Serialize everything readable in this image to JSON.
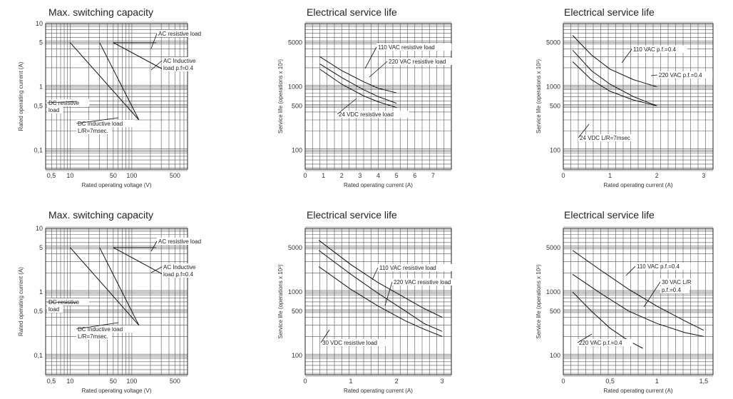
{
  "chart_data": [
    {
      "type": "line",
      "title": "Max. switching capacity",
      "xlabel": "Rated operating voltage (V)",
      "ylabel": "Rated operating current (A)",
      "xscale": "log",
      "yscale": "log",
      "xlim": [
        4,
        800
      ],
      "ylim": [
        0.05,
        10
      ],
      "xticks": [
        0.5,
        10,
        50,
        100,
        500
      ],
      "xtick_labels": [
        "0,5",
        "10",
        "50",
        "100",
        "500"
      ],
      "yticks": [
        0.1,
        0.5,
        1,
        5,
        10
      ],
      "ytick_labels": [
        "0,1",
        "0,5",
        "1",
        "5",
        "10"
      ],
      "grid": true,
      "series": [
        {
          "name": "AC resistive load",
          "x": [
            50,
            250
          ],
          "y": [
            5,
            5
          ]
        },
        {
          "name": "AC Inductive load p.f=0.4",
          "x": [
            50,
            350
          ],
          "y": [
            5,
            1.8
          ]
        },
        {
          "name": "DC resistive load",
          "x": [
            10,
            130
          ],
          "y": [
            5,
            0.3
          ]
        },
        {
          "name": "DC Inductive load L/R=7msec.",
          "x": [
            30,
            130
          ],
          "y": [
            5,
            0.3
          ]
        }
      ],
      "annotations": [
        {
          "text": "AC resistive load",
          "series": 0
        },
        {
          "text": "AC Inductive",
          "series": 1
        },
        {
          "text": "load p.f=0.4",
          "series": 1
        },
        {
          "text": "DC resistive",
          "series": 2
        },
        {
          "text": "load",
          "series": 2
        },
        {
          "text": "DC Inductive load",
          "series": 3
        },
        {
          "text": "L/R=7msec.",
          "series": 3
        }
      ]
    },
    {
      "type": "line",
      "title": "Electrical service life",
      "xlabel": "Rated operating current (A)",
      "ylabel": "Service life (operations x 10³)",
      "xscale": "linear",
      "yscale": "log",
      "xlim": [
        0,
        8
      ],
      "ylim": [
        50,
        10000
      ],
      "xticks": [
        0,
        1,
        2,
        3,
        4,
        5,
        6,
        7
      ],
      "xtick_labels": [
        "0",
        "1",
        "2",
        "3",
        "4",
        "5",
        "6",
        "7"
      ],
      "yticks": [
        100,
        500,
        1000,
        5000
      ],
      "ytick_labels": [
        "100",
        "500",
        "1000",
        "5000"
      ],
      "grid": true,
      "series": [
        {
          "name": "110 VAC resistive load",
          "x": [
            0.8,
            2.0,
            3.2,
            4.0,
            5.0
          ],
          "y": [
            3000,
            1800,
            1200,
            950,
            800
          ]
        },
        {
          "name": "220 VAC resistive load",
          "x": [
            0.8,
            2.0,
            3.2,
            4.0,
            5.0
          ],
          "y": [
            2300,
            1400,
            900,
            700,
            550
          ]
        },
        {
          "name": "24 VDC resistive load",
          "x": [
            0.8,
            2.0,
            3.2,
            4.0,
            5.0
          ],
          "y": [
            1900,
            1100,
            720,
            580,
            470
          ]
        }
      ],
      "annotations": [
        {
          "text": "110 VAC resistive load",
          "series": 0
        },
        {
          "text": "220 VAC resistive load",
          "series": 1
        },
        {
          "text": "24 VDC resistive load",
          "series": 2
        }
      ]
    },
    {
      "type": "line",
      "title": "Electrical service life",
      "xlabel": "Rated operating current (A)",
      "ylabel": "Service life (operations x 10³)",
      "xscale": "linear",
      "yscale": "log",
      "xlim": [
        0,
        3.2
      ],
      "ylim": [
        50,
        10000
      ],
      "xticks": [
        0,
        1,
        2,
        3
      ],
      "xtick_labels": [
        "0",
        "1",
        "2",
        "3"
      ],
      "yticks": [
        100,
        500,
        1000,
        5000
      ],
      "ytick_labels": [
        "100",
        "500",
        "1000",
        "5000"
      ],
      "grid": true,
      "series": [
        {
          "name": "110 VAC p.f.=0.4",
          "x": [
            0.2,
            0.6,
            1.0,
            1.5,
            2.0
          ],
          "y": [
            6500,
            3200,
            1900,
            1300,
            1000
          ]
        },
        {
          "name": "220 VAC p.f.=0.4",
          "x": [
            0.2,
            0.6,
            1.0,
            1.5,
            2.0
          ],
          "y": [
            3800,
            1800,
            1100,
            700,
            500
          ]
        },
        {
          "name": "24 VDC L/R=7msec",
          "x": [
            0.2,
            0.6,
            1.0,
            1.5,
            2.0
          ],
          "y": [
            2500,
            1300,
            850,
            620,
            500
          ]
        }
      ],
      "annotations": [
        {
          "text": "110 VAC p.f.=0.4",
          "series": 0
        },
        {
          "text": "220 VAC p.f.=0.4",
          "series": 1
        },
        {
          "text": "24 VDC L/R=7msec",
          "series": 2
        }
      ]
    },
    {
      "type": "line",
      "title": "Max. switching capacity",
      "xlabel": "Rated operating voltage (V)",
      "ylabel": "Rated operating current (A)",
      "xscale": "log",
      "yscale": "log",
      "xlim": [
        4,
        800
      ],
      "ylim": [
        0.05,
        10
      ],
      "xticks": [
        0.5,
        10,
        50,
        100,
        500
      ],
      "xtick_labels": [
        "0,5",
        "10",
        "50",
        "100",
        "500"
      ],
      "yticks": [
        0.1,
        0.5,
        1,
        5,
        10
      ],
      "ytick_labels": [
        "0,1",
        "0,5",
        "1",
        "5",
        "10"
      ],
      "grid": true,
      "series": [
        {
          "name": "AC resistive load",
          "x": [
            50,
            250
          ],
          "y": [
            5,
            5
          ]
        },
        {
          "name": "AC Inductive load p.f=0.4",
          "x": [
            50,
            350
          ],
          "y": [
            5,
            1.8
          ]
        },
        {
          "name": "DC resistive load",
          "x": [
            10,
            130
          ],
          "y": [
            5,
            0.3
          ]
        },
        {
          "name": "DC Inductive load L/R=7msec.",
          "x": [
            30,
            130
          ],
          "y": [
            5,
            0.3
          ]
        }
      ],
      "annotations": [
        {
          "text": "AC resistive load",
          "series": 0
        },
        {
          "text": "AC Inductive",
          "series": 1
        },
        {
          "text": "load p.f=0.4",
          "series": 1
        },
        {
          "text": "DC resistive",
          "series": 2
        },
        {
          "text": "load",
          "series": 2
        },
        {
          "text": "DC Inductive load",
          "series": 3
        },
        {
          "text": "L/R=7msec.",
          "series": 3
        }
      ]
    },
    {
      "type": "line",
      "title": "Electrical service life",
      "xlabel": "Rated operating current (A)",
      "ylabel": "Service life (operations x 10³)",
      "xscale": "linear",
      "yscale": "log",
      "xlim": [
        0,
        3.2
      ],
      "ylim": [
        50,
        10000
      ],
      "xticks": [
        0,
        1,
        2,
        3
      ],
      "xtick_labels": [
        "0",
        "1",
        "2",
        "3"
      ],
      "yticks": [
        100,
        500,
        1000,
        5000
      ],
      "ytick_labels": [
        "100",
        "500",
        "1000",
        "5000"
      ],
      "grid": true,
      "series": [
        {
          "name": "110 VAC resistive load",
          "x": [
            0.3,
            1.0,
            1.6,
            2.2,
            2.6,
            3.0
          ],
          "y": [
            6500,
            2700,
            1400,
            800,
            550,
            400
          ]
        },
        {
          "name": "220 VAC resistive load",
          "x": [
            0.3,
            1.0,
            1.6,
            2.2,
            2.6,
            3.0
          ],
          "y": [
            4500,
            1900,
            950,
            500,
            320,
            240
          ]
        },
        {
          "name": "30 VDC resistive load",
          "x": [
            0.3,
            1.0,
            1.6,
            2.2,
            2.6,
            3.0
          ],
          "y": [
            2500,
            1100,
            600,
            350,
            260,
            200
          ]
        }
      ],
      "annotations": [
        {
          "text": "110 VAC resistive load",
          "series": 0
        },
        {
          "text": "220 VAC resistive load",
          "series": 1
        },
        {
          "text": "30 VDC resistive load",
          "series": 2
        }
      ]
    },
    {
      "type": "line",
      "title": "Electrical service life",
      "xlabel": "Rated operating current (A)",
      "ylabel": "Service life (operations x 10³)",
      "xscale": "linear",
      "yscale": "log",
      "xlim": [
        0,
        1.6
      ],
      "ylim": [
        50,
        10000
      ],
      "xticks": [
        0,
        0.5,
        1,
        1.5
      ],
      "xtick_labels": [
        "0",
        "0,5",
        "1",
        "1,5"
      ],
      "yticks": [
        100,
        500,
        1000,
        5000
      ],
      "ytick_labels": [
        "100",
        "500",
        "1000",
        "5000"
      ],
      "grid": true,
      "series": [
        {
          "name": "110 VAC p.f.=0.4",
          "x": [
            0.1,
            0.4,
            0.7,
            1.0,
            1.3,
            1.5
          ],
          "y": [
            4500,
            2200,
            1100,
            600,
            350,
            250
          ]
        },
        {
          "name": "30 VAC L/R p.f.=0.4",
          "x": [
            0.1,
            0.4,
            0.7,
            1.0,
            1.3,
            1.5
          ],
          "y": [
            1900,
            950,
            500,
            320,
            230,
            200
          ]
        },
        {
          "name": "220 VAC p.f.=0.4",
          "x": [
            0.1,
            0.3,
            0.5,
            0.7,
            0.85
          ],
          "y": [
            1000,
            500,
            270,
            170,
            130
          ]
        }
      ],
      "annotations": [
        {
          "text": "110 VAC p.f.=0.4",
          "series": 0
        },
        {
          "text": "30 VAC L/R",
          "series": 1
        },
        {
          "text": "p.f.=0.4",
          "series": 1
        },
        {
          "text": "220 VAC p.f.=0.4",
          "series": 2
        }
      ]
    }
  ]
}
